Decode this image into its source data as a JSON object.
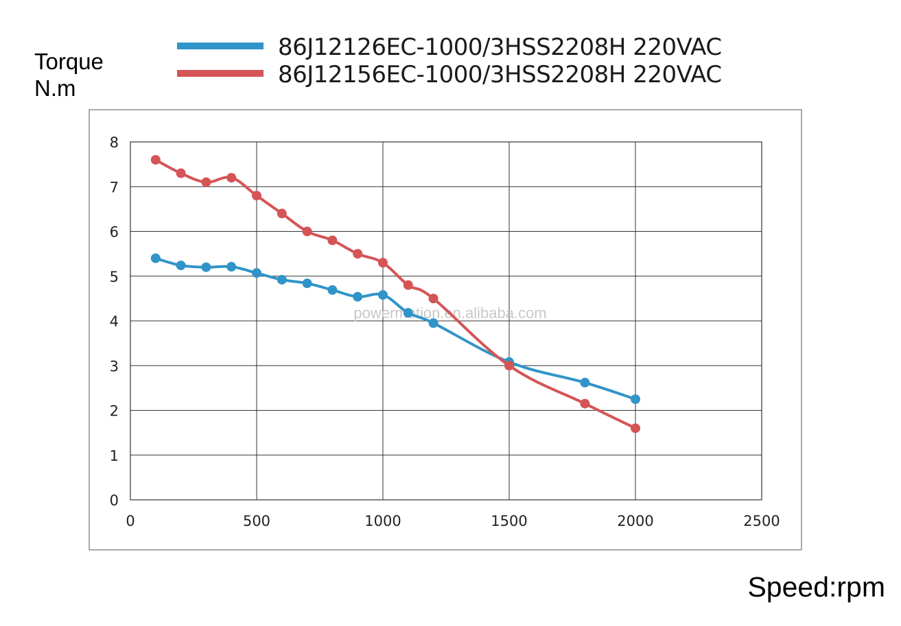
{
  "chart_data": {
    "type": "line",
    "title": "",
    "xlabel": "Speed:rpm",
    "ylabel": [
      "Torque",
      "N.m"
    ],
    "xlim": [
      0,
      2500
    ],
    "ylim": [
      0,
      8
    ],
    "xticks": [
      "0",
      "500",
      "1000",
      "1500",
      "2000",
      "2500"
    ],
    "yticks": [
      "0",
      "1",
      "2",
      "3",
      "4",
      "5",
      "6",
      "7",
      "8"
    ],
    "grid": true,
    "legend_position": "top",
    "watermark": "powermotion.en.alibaba.com",
    "series": [
      {
        "name": "86J12126EC-1000/3HSS2208H  220VAC",
        "color": "#3194c8",
        "x": [
          100,
          200,
          300,
          400,
          500,
          600,
          700,
          800,
          900,
          1000,
          1100,
          1200,
          1500,
          1800,
          2000
        ],
        "y": [
          5.4,
          5.24,
          5.2,
          5.21,
          5.07,
          4.92,
          4.84,
          4.69,
          4.54,
          4.58,
          4.18,
          3.95,
          3.08,
          2.62,
          2.25
        ]
      },
      {
        "name": "86J12156EC-1000/3HSS2208H  220VAC",
        "color": "#d55456",
        "x": [
          100,
          200,
          300,
          400,
          500,
          600,
          700,
          800,
          900,
          1000,
          1100,
          1200,
          1500,
          1800,
          2000
        ],
        "y": [
          7.6,
          7.3,
          7.1,
          7.2,
          6.8,
          6.4,
          6.0,
          5.8,
          5.5,
          5.3,
          4.8,
          4.5,
          3.0,
          2.15,
          1.6
        ]
      }
    ]
  }
}
